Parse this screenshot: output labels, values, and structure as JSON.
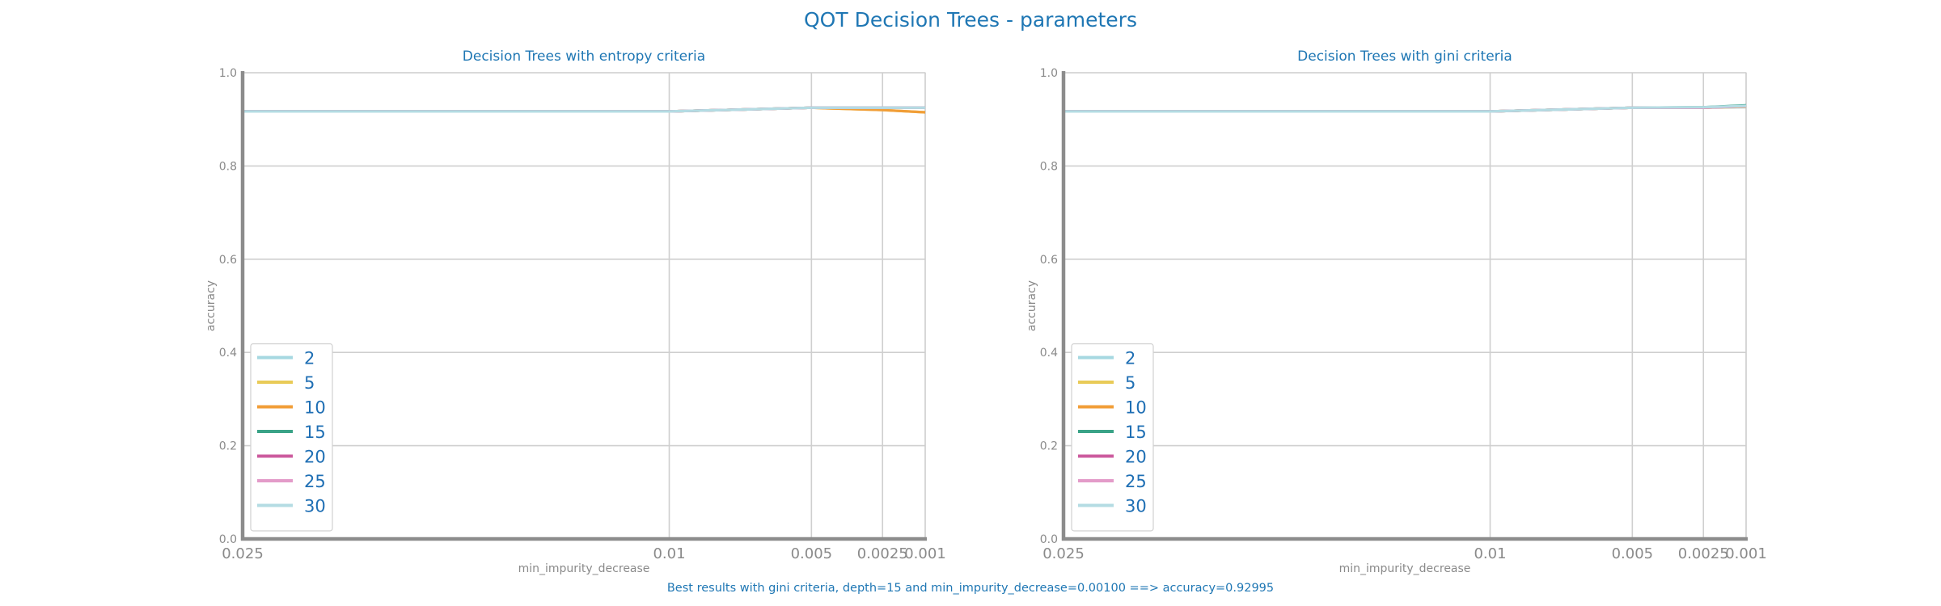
{
  "figure": {
    "title": "QOT Decision Trees - parameters",
    "footer": "Best results with gini criteria, depth=15 and min_impurity_decrease=0.00100 ==> accuracy=0.92995"
  },
  "chart_data": [
    {
      "type": "line",
      "title": "Decision Trees with entropy criteria",
      "xlabel": "min_impurity_decrease",
      "ylabel": "accuracy",
      "x": [
        0.025,
        0.02,
        0.01,
        0.0075,
        0.005,
        0.0025,
        0.001
      ],
      "xticks": [
        0.025,
        0.01,
        0.005,
        0.0025,
        0.001
      ],
      "xtick_labels": [
        "0.025",
        "0.01",
        "0.005",
        "0.0025",
        "0.001"
      ],
      "x_scale": "reversed",
      "ylim": [
        0.0,
        1.0
      ],
      "yticks": [
        0.0,
        0.2,
        0.4,
        0.6,
        0.8,
        1.0
      ],
      "ytick_labels": [
        "0.0",
        "0.2",
        "0.4",
        "0.6",
        "0.8",
        "1.0"
      ],
      "grid": true,
      "legend": "lower-left",
      "series": [
        {
          "name": "2",
          "color": "#a6d8e1",
          "values": [
            0.917,
            0.917,
            0.917,
            0.921,
            0.925,
            0.925,
            0.925
          ]
        },
        {
          "name": "5",
          "color": "#e9cb58",
          "values": [
            0.917,
            0.917,
            0.917,
            0.921,
            0.925,
            0.92,
            0.915
          ]
        },
        {
          "name": "10",
          "color": "#f19e38",
          "values": [
            0.917,
            0.917,
            0.917,
            0.921,
            0.925,
            0.92,
            0.915
          ]
        },
        {
          "name": "15",
          "color": "#3aa387",
          "values": [
            0.917,
            0.917,
            0.917,
            0.921,
            0.925,
            0.925,
            0.925
          ]
        },
        {
          "name": "20",
          "color": "#cc5b9e",
          "values": [
            0.917,
            0.917,
            0.917,
            0.921,
            0.925,
            0.925,
            0.925
          ]
        },
        {
          "name": "25",
          "color": "#e39bc9",
          "values": [
            0.917,
            0.917,
            0.917,
            0.921,
            0.925,
            0.925,
            0.925
          ]
        },
        {
          "name": "30",
          "color": "#b4dce3",
          "values": [
            0.917,
            0.917,
            0.917,
            0.921,
            0.925,
            0.925,
            0.925
          ]
        }
      ]
    },
    {
      "type": "line",
      "title": "Decision Trees with gini criteria",
      "xlabel": "min_impurity_decrease",
      "ylabel": "accuracy",
      "x": [
        0.025,
        0.02,
        0.01,
        0.0075,
        0.005,
        0.0025,
        0.001
      ],
      "xticks": [
        0.025,
        0.01,
        0.005,
        0.0025,
        0.001
      ],
      "xtick_labels": [
        "0.025",
        "0.01",
        "0.005",
        "0.0025",
        "0.001"
      ],
      "x_scale": "reversed",
      "ylim": [
        0.0,
        1.0
      ],
      "yticks": [
        0.0,
        0.2,
        0.4,
        0.6,
        0.8,
        1.0
      ],
      "ytick_labels": [
        "0.0",
        "0.2",
        "0.4",
        "0.6",
        "0.8",
        "1.0"
      ],
      "grid": true,
      "legend": "lower-left",
      "series": [
        {
          "name": "2",
          "color": "#a6d8e1",
          "values": [
            0.917,
            0.917,
            0.917,
            0.921,
            0.925,
            0.925,
            0.926
          ]
        },
        {
          "name": "5",
          "color": "#e9cb58",
          "values": [
            0.917,
            0.917,
            0.917,
            0.921,
            0.925,
            0.925,
            0.927
          ]
        },
        {
          "name": "10",
          "color": "#f19e38",
          "values": [
            0.917,
            0.917,
            0.917,
            0.921,
            0.925,
            0.925,
            0.928
          ]
        },
        {
          "name": "15",
          "color": "#3aa387",
          "values": [
            0.917,
            0.917,
            0.917,
            0.921,
            0.925,
            0.926,
            0.93
          ]
        },
        {
          "name": "20",
          "color": "#cc5b9e",
          "values": [
            0.917,
            0.917,
            0.917,
            0.921,
            0.925,
            0.925,
            0.928
          ]
        },
        {
          "name": "25",
          "color": "#e39bc9",
          "values": [
            0.917,
            0.917,
            0.917,
            0.921,
            0.925,
            0.925,
            0.928
          ]
        },
        {
          "name": "30",
          "color": "#b4dce3",
          "values": [
            0.917,
            0.917,
            0.917,
            0.921,
            0.925,
            0.926,
            0.929
          ]
        }
      ]
    }
  ]
}
